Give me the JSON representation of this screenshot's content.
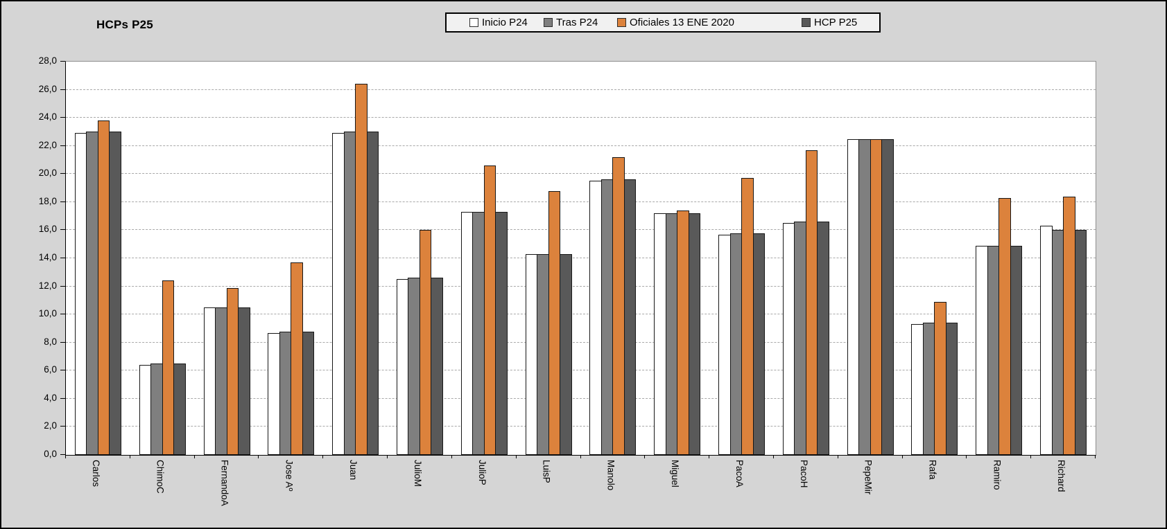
{
  "title": "HCPs P25",
  "chart_data": {
    "type": "bar",
    "title": "HCPs P25",
    "categories": [
      "Carlos",
      "ChimoC",
      "FernandoA",
      "Jose Aº",
      "Juan",
      "JulioM",
      "JulioP",
      "LuisP",
      "Manolo",
      "Miguel",
      "PacoA",
      "PacoH",
      "PepeMir",
      "Rafa",
      "Ramiro",
      "Richard"
    ],
    "series": [
      {
        "name": "Inicio P24",
        "color": "#ffffff",
        "values": [
          22.9,
          6.4,
          10.5,
          8.7,
          22.9,
          12.5,
          17.3,
          14.3,
          19.5,
          17.2,
          15.7,
          16.5,
          22.5,
          9.3,
          14.9,
          16.3
        ]
      },
      {
        "name": "Tras P24",
        "color": "#7f7f7f",
        "values": [
          23.0,
          6.5,
          10.5,
          8.8,
          23.0,
          12.6,
          17.3,
          14.3,
          19.6,
          17.2,
          15.8,
          16.6,
          22.5,
          9.4,
          14.9,
          16.0
        ]
      },
      {
        "name": "Oficiales 13 ENE 2020",
        "color": "#dc823c",
        "values": [
          23.8,
          12.4,
          11.9,
          13.7,
          26.4,
          16.0,
          20.6,
          18.8,
          21.2,
          17.4,
          19.7,
          21.7,
          22.5,
          10.9,
          18.3,
          18.4
        ]
      },
      {
        "name": "HCP P25",
        "color": "#595959",
        "values": [
          23.0,
          6.5,
          10.5,
          8.8,
          23.0,
          12.6,
          17.3,
          14.3,
          19.6,
          17.2,
          15.8,
          16.6,
          22.5,
          9.4,
          14.9,
          16.0
        ]
      }
    ],
    "y_tick_labels": [
      "0,0",
      "2,0",
      "4,0",
      "6,0",
      "8,0",
      "10,0",
      "12,0",
      "14,0",
      "16,0",
      "18,0",
      "20,0",
      "22,0",
      "24,0",
      "26,0",
      "28,0"
    ],
    "ylim": [
      0,
      28
    ],
    "ytick_step": 2,
    "grid": "horizontal-dashed",
    "legend_position": "top",
    "xlabel": "",
    "ylabel": ""
  },
  "colors": {
    "background": "#d5d5d5",
    "plot_background": "#ffffff",
    "legend_background": "#f1f1f1",
    "orange_series": "#dc823c",
    "gray_series": "#7f7f7f",
    "dark_gray_series": "#595959",
    "gridline": "#a8a8a8"
  }
}
